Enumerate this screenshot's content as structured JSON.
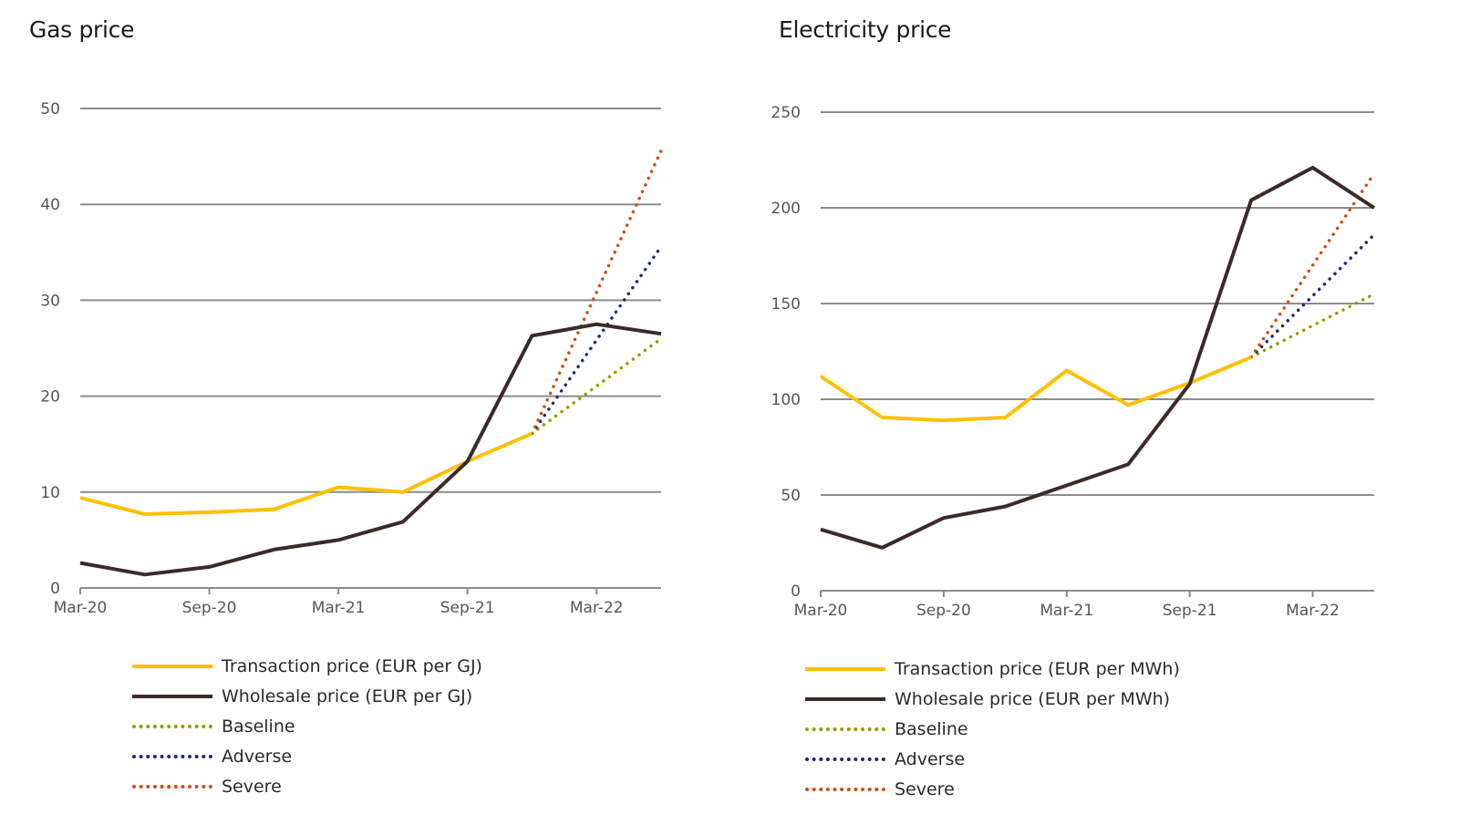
{
  "chart_data": [
    {
      "type": "line",
      "title": "Gas price",
      "xlabel": "",
      "ylabel": "",
      "x": [
        "Mar-20",
        "Jun-20",
        "Sep-20",
        "Dec-20",
        "Mar-21",
        "Jun-21",
        "Sep-21",
        "Dec-21",
        "Mar-22",
        "Jun-22"
      ],
      "x_tick_labels": [
        "Mar-20",
        "Sep-20",
        "Mar-21",
        "Sep-21",
        "Mar-22"
      ],
      "y_ticks": [
        0,
        10,
        20,
        30,
        40,
        50
      ],
      "ylim": [
        0,
        50
      ],
      "grid": true,
      "legend_position": "bottom",
      "series": [
        {
          "name": "Transaction price (EUR per GJ)",
          "style": "solid",
          "color": "#FFC000",
          "values": [
            9.4,
            7.7,
            7.9,
            8.2,
            10.5,
            10.0,
            13.2,
            16.1,
            null,
            null
          ]
        },
        {
          "name": "Wholesale price (EUR per GJ)",
          "style": "solid",
          "color": "#3C2A2A",
          "values": [
            2.6,
            1.4,
            2.2,
            4.0,
            5.0,
            6.9,
            13.2,
            26.3,
            27.5,
            26.5
          ]
        },
        {
          "name": "Baseline",
          "style": "dotted",
          "color": "#9A9A00",
          "values": [
            null,
            null,
            null,
            null,
            null,
            null,
            null,
            16.1,
            null,
            26.0
          ]
        },
        {
          "name": "Adverse",
          "style": "dotted",
          "color": "#1F2A6B",
          "values": [
            null,
            null,
            null,
            null,
            null,
            null,
            null,
            16.1,
            null,
            35.6
          ]
        },
        {
          "name": "Severe",
          "style": "dotted",
          "color": "#D24A12",
          "values": [
            null,
            null,
            null,
            null,
            null,
            null,
            null,
            16.1,
            null,
            45.6
          ]
        }
      ]
    },
    {
      "type": "line",
      "title": "Electricity price",
      "xlabel": "",
      "ylabel": "",
      "x": [
        "Mar-20",
        "Jun-20",
        "Sep-20",
        "Dec-20",
        "Mar-21",
        "Jun-21",
        "Sep-21",
        "Dec-21",
        "Mar-22",
        "Jun-22"
      ],
      "x_tick_labels": [
        "Mar-20",
        "Sep-20",
        "Mar-21",
        "Sep-21",
        "Mar-22"
      ],
      "y_ticks": [
        0,
        50,
        100,
        150,
        200,
        250
      ],
      "ylim": [
        0,
        250
      ],
      "grid": true,
      "legend_position": "bottom",
      "series": [
        {
          "name": "Transaction price (EUR per MWh)",
          "style": "solid",
          "color": "#FFC000",
          "values": [
            112,
            90.5,
            89,
            90.5,
            115,
            97,
            108.5,
            122,
            null,
            null
          ]
        },
        {
          "name": "Wholesale price (EUR per MWh)",
          "style": "solid",
          "color": "#3C2A2A",
          "values": [
            32,
            22.5,
            38,
            44,
            55,
            66,
            108,
            204,
            221,
            200
          ]
        },
        {
          "name": "Baseline",
          "style": "dotted",
          "color": "#9A9A00",
          "values": [
            null,
            null,
            null,
            null,
            null,
            null,
            null,
            122,
            null,
            155
          ]
        },
        {
          "name": "Adverse",
          "style": "dotted",
          "color": "#1F2A6B",
          "values": [
            null,
            null,
            null,
            null,
            null,
            null,
            null,
            122,
            null,
            186
          ]
        },
        {
          "name": "Severe",
          "style": "dotted",
          "color": "#D24A12",
          "values": [
            null,
            null,
            null,
            null,
            null,
            null,
            null,
            122,
            null,
            218
          ]
        }
      ]
    }
  ]
}
